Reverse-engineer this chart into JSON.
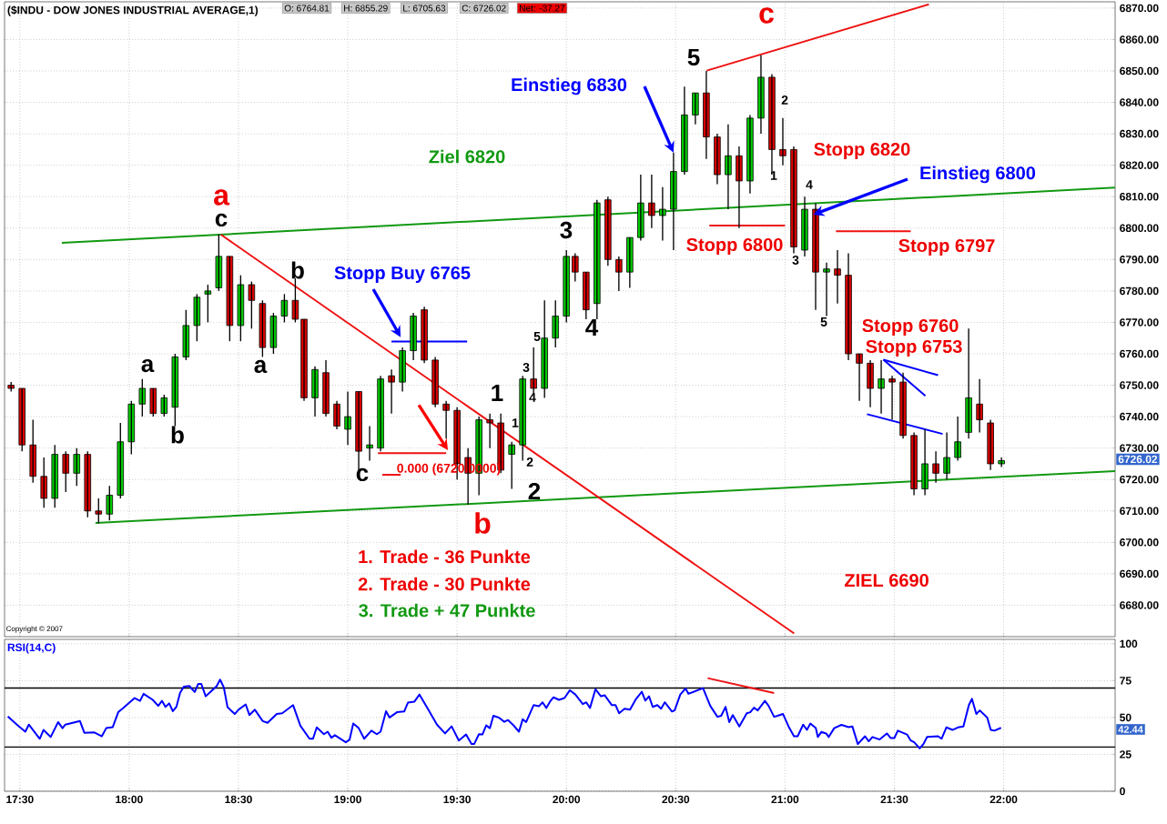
{
  "chart_data": [
    {
      "type": "candlestick",
      "title": "($INDU - DOW JONES INDUSTRIAL AVERAGE,1)",
      "x": [
        17.46,
        17.51,
        17.56,
        17.61,
        17.66,
        17.71,
        17.76,
        17.81,
        17.86,
        17.91,
        17.96,
        18.01,
        18.06,
        18.11,
        18.16,
        18.21,
        18.26,
        18.31,
        18.36,
        18.41,
        18.46,
        18.51,
        18.56,
        18.61,
        18.66,
        18.71,
        18.76,
        18.8,
        18.85,
        18.9,
        18.95,
        19.0,
        19.05,
        19.1,
        19.15,
        19.2,
        19.25,
        19.3,
        19.35,
        19.4,
        19.45,
        19.5,
        19.55,
        19.6,
        19.65,
        19.7,
        19.75,
        19.8,
        19.85,
        19.9,
        19.95,
        20.0,
        20.04,
        20.09,
        20.14,
        20.19,
        20.24,
        20.29,
        20.34,
        20.39,
        20.44,
        20.49,
        20.54,
        20.59,
        20.64,
        20.69,
        20.74,
        20.79,
        20.84,
        20.89,
        20.94,
        20.99,
        21.04,
        21.09,
        21.14,
        21.19,
        21.24,
        21.29,
        21.34,
        21.39,
        21.44,
        21.49,
        21.54,
        21.59,
        21.64,
        21.69,
        21.74,
        21.79,
        21.84,
        21.89,
        21.94,
        21.99
      ],
      "ohlc": [
        [
          6750,
          6751,
          6748,
          6749
        ],
        [
          6749,
          6749,
          6729,
          6731
        ],
        [
          6731,
          6739,
          6719,
          6721
        ],
        [
          6721,
          6727,
          6711,
          6714
        ],
        [
          6714,
          6731,
          6711,
          6728
        ],
        [
          6728,
          6729,
          6716,
          6722
        ],
        [
          6722,
          6730,
          6718,
          6728
        ],
        [
          6728,
          6729,
          6708,
          6710
        ],
        [
          6710,
          6714,
          6706,
          6709
        ],
        [
          6709,
          6718,
          6707,
          6715
        ],
        [
          6715,
          6738,
          6714,
          6732
        ],
        [
          6732,
          6745,
          6728,
          6744
        ],
        [
          6744,
          6752,
          6740,
          6749
        ],
        [
          6749,
          6749,
          6740,
          6741
        ],
        [
          6741,
          6747,
          6740,
          6746
        ],
        [
          6743,
          6760,
          6737,
          6759
        ],
        [
          6759,
          6774,
          6758,
          6769
        ],
        [
          6769,
          6779,
          6764,
          6778
        ],
        [
          6779,
          6782,
          6770,
          6780
        ],
        [
          6781,
          6798,
          6780,
          6791
        ],
        [
          6791,
          6791,
          6764,
          6769
        ],
        [
          6769,
          6785,
          6764,
          6782
        ],
        [
          6782,
          6783,
          6768,
          6777
        ],
        [
          6776,
          6777,
          6759,
          6762
        ],
        [
          6762,
          6773,
          6760,
          6772
        ],
        [
          6772,
          6779,
          6770,
          6777
        ],
        [
          6777,
          6784,
          6770,
          6771
        ],
        [
          6771,
          6771,
          6745,
          6746
        ],
        [
          6746,
          6756,
          6740,
          6755
        ],
        [
          6754,
          6758,
          6740,
          6741
        ],
        [
          6744,
          6745,
          6736,
          6737
        ],
        [
          6736,
          6748,
          6731,
          6740
        ],
        [
          6748,
          6748,
          6721,
          6729
        ],
        [
          6730,
          6737,
          6726,
          6731
        ],
        [
          6730,
          6753,
          6729,
          6752
        ],
        [
          6753,
          6755,
          6741,
          6751
        ],
        [
          6751,
          6762,
          6748,
          6761
        ],
        [
          6761,
          6773,
          6758,
          6772
        ],
        [
          6774,
          6775,
          6757,
          6758
        ],
        [
          6758,
          6759,
          6743,
          6744
        ],
        [
          6744,
          6745,
          6733,
          6742
        ],
        [
          6742,
          6743,
          6720,
          6725
        ],
        [
          6727,
          6730,
          6712,
          6722
        ],
        [
          6722,
          6740,
          6715,
          6739
        ],
        [
          6739,
          6741,
          6730,
          6738
        ],
        [
          6738,
          6741,
          6722,
          6723
        ],
        [
          6728,
          6732,
          6717,
          6731
        ],
        [
          6731,
          6753,
          6726,
          6752
        ],
        [
          6752,
          6762,
          6747,
          6749
        ],
        [
          6749,
          6777,
          6746,
          6765
        ],
        [
          6765,
          6777,
          6762,
          6772
        ],
        [
          6772,
          6793,
          6770,
          6791
        ],
        [
          6791,
          6792,
          6783,
          6786
        ],
        [
          6786,
          6786,
          6771,
          6774
        ],
        [
          6776,
          6809,
          6771,
          6808
        ],
        [
          6809,
          6810,
          6788,
          6790
        ],
        [
          6790,
          6791,
          6780,
          6786
        ],
        [
          6786,
          6797,
          6781,
          6797
        ],
        [
          6797,
          6817,
          6796,
          6808
        ],
        [
          6808,
          6817,
          6800,
          6804
        ],
        [
          6804,
          6813,
          6796,
          6806
        ],
        [
          6806,
          6824,
          6793,
          6818
        ],
        [
          6818,
          6845,
          6817,
          6836
        ],
        [
          6836,
          6843,
          6833,
          6843
        ],
        [
          6843,
          6850,
          6822,
          6829
        ],
        [
          6829,
          6830,
          6814,
          6817
        ],
        [
          6817,
          6833,
          6806,
          6823
        ],
        [
          6823,
          6826,
          6800,
          6815
        ],
        [
          6815,
          6836,
          6811,
          6835
        ],
        [
          6835,
          6855,
          6830,
          6848
        ],
        [
          6848,
          6849,
          6817,
          6825
        ],
        [
          6825,
          6835,
          6820,
          6823
        ],
        [
          6825,
          6826,
          6792,
          6794
        ],
        [
          6793,
          6810,
          6791,
          6806
        ],
        [
          6806,
          6808,
          6774,
          6786
        ],
        [
          6786,
          6789,
          6772,
          6787
        ],
        [
          6787,
          6793,
          6776,
          6785
        ],
        [
          6785,
          6792,
          6758,
          6760
        ],
        [
          6760,
          6760,
          6745,
          6757
        ],
        [
          6757,
          6758,
          6743,
          6749
        ],
        [
          6749,
          6758,
          6741,
          6752
        ],
        [
          6752,
          6753,
          6739,
          6751
        ],
        [
          6751,
          6754,
          6733,
          6734
        ],
        [
          6734,
          6735,
          6715,
          6717
        ],
        [
          6717,
          6736,
          6715,
          6725
        ],
        [
          6725,
          6729,
          6719,
          6722
        ],
        [
          6722,
          6735,
          6720,
          6727
        ],
        [
          6727,
          6740,
          6726,
          6732
        ],
        [
          6735,
          6768,
          6733,
          6746
        ],
        [
          6744,
          6752,
          6735,
          6739
        ],
        [
          6738,
          6739,
          6723,
          6725
        ],
        [
          6725,
          6727,
          6724,
          6726
        ]
      ],
      "series": [
        {
          "type": "line",
          "color": "#119911",
          "x": [
            17.692,
            22.51
          ],
          "values": [
            6795.3,
            6812.9
          ]
        },
        {
          "type": "line",
          "color": "#119911",
          "x": [
            17.846,
            22.51
          ],
          "values": [
            6706.2,
            6722.7
          ]
        },
        {
          "type": "line",
          "color": "#ee1111",
          "x": [
            18.42,
            21.042
          ],
          "values": [
            6797.9,
            6671
          ]
        },
        {
          "type": "line",
          "color": "#ee1111",
          "x": [
            20.642,
            21.658
          ],
          "values": [
            6850.1,
            6871.2
          ]
        },
        {
          "type": "line",
          "color": "#0000ff",
          "x": [
            19.2,
            19.546
          ],
          "values": [
            6763.9,
            6763.9
          ]
        },
        {
          "type": "line",
          "color": "#ee1111",
          "x": [
            19.138,
            19.45
          ],
          "values": [
            6728.4,
            6728.4
          ]
        },
        {
          "type": "line",
          "color": "#ee1111",
          "x": [
            19.158,
            19.242
          ],
          "values": [
            6721.5,
            6721.5
          ]
        },
        {
          "type": "line",
          "color": "#ee1111",
          "x": [
            20.654,
            21.0
          ],
          "values": [
            6800.8,
            6800.8
          ]
        },
        {
          "type": "line",
          "color": "#ee1111",
          "x": [
            21.233,
            21.575
          ],
          "values": [
            6799,
            6799
          ]
        },
        {
          "type": "line",
          "color": "#0000ff",
          "x": [
            21.375,
            21.721
          ],
          "values": [
            6740.8,
            6734.5
          ]
        },
        {
          "type": "line",
          "color": "#0000ff",
          "x": [
            21.45,
            21.7
          ],
          "values": [
            6758.1,
            6753.2
          ]
        },
        {
          "type": "line",
          "color": "#0000ff",
          "x": [
            21.45,
            21.642
          ],
          "values": [
            6758.1,
            6746.6
          ]
        }
      ],
      "xlim": [
        17.43,
        22.51
      ],
      "ylim": [
        6670,
        6872
      ],
      "xticks": [
        {
          "value": 17.5,
          "label": null
        },
        {
          "value": 18,
          "label": null
        },
        {
          "value": 18.5,
          "label": null
        },
        {
          "value": 19,
          "label": null
        },
        {
          "value": 19.5,
          "label": null
        },
        {
          "value": 20,
          "label": null
        },
        {
          "value": 20.5,
          "label": null
        },
        {
          "value": 21,
          "label": null
        },
        {
          "value": 21.5,
          "label": null
        },
        {
          "value": 22,
          "label": null
        }
      ],
      "yticks": [
        {
          "value": 6680,
          "label": "6680.00"
        },
        {
          "value": 6690,
          "label": "6690.00"
        },
        {
          "value": 6700,
          "label": "6700.00"
        },
        {
          "value": 6710,
          "label": "6710.00"
        },
        {
          "value": 6720,
          "label": "6720.00"
        },
        {
          "value": 6730,
          "label": "6730.00"
        },
        {
          "value": 6740,
          "label": "6740.00"
        },
        {
          "value": 6750,
          "label": "6750.00"
        },
        {
          "value": 6760,
          "label": "6760.00"
        },
        {
          "value": 6770,
          "label": "6770.00"
        },
        {
          "value": 6780,
          "label": "6780.00"
        },
        {
          "value": 6790,
          "label": "6790.00"
        },
        {
          "value": 6800,
          "label": "6800.00"
        },
        {
          "value": 6810,
          "label": "6810.00"
        },
        {
          "value": 6820,
          "label": "6820.00"
        },
        {
          "value": 6830,
          "label": "6830.00"
        },
        {
          "value": 6840,
          "label": "6840.00"
        },
        {
          "value": 6850,
          "label": "6850.00"
        },
        {
          "value": 6860,
          "label": "6860.00"
        },
        {
          "value": 6870,
          "label": "6870.00"
        }
      ],
      "tick_labels": "y",
      "grid": true,
      "annotations": [
        "O: 6764.81",
        "H: 6855.29",
        "L: 6705.63",
        "C: 6726.02",
        "Net: -37.27",
        "Copyright © 2007",
        "a",
        "c",
        "b",
        "a",
        "a",
        "b",
        "c",
        "b",
        "1",
        "2",
        "3",
        "4",
        "5",
        "c",
        "5",
        "3",
        "4",
        "1",
        "2",
        "2",
        "1",
        "4",
        "3",
        "5",
        "Ziel 6820",
        {
          "text": "Stopp Buy 6765",
          "x": 19.242,
          "y": 6765.3
        },
        {
          "text": "Einstieg 6830",
          "x": 20.49,
          "y": 6824
        },
        "Stopp 6820",
        {
          "text": "Einstieg 6800",
          "x": 21.129,
          "y": 6804.3
        },
        "Stopp 6800",
        "Stopp 6797",
        "Stopp 6760",
        "Stopp 6753",
        "ZIEL 6690",
        "1. Trade - 36 Punkte",
        "2. Trade - 30 Punkte",
        "3. Trade + 47 Punkte",
        "0.000 (6720.0000)",
        "6726.02"
      ]
    },
    {
      "type": "line",
      "title": "RSI(14,C)",
      "series": [
        {
          "color": "#0000ff",
          "x": [
            17.445,
            17.491,
            17.525,
            17.541,
            17.591,
            17.608,
            17.641,
            17.675,
            17.695,
            17.708,
            17.775,
            17.795,
            17.841,
            17.875,
            17.895,
            17.925,
            17.95,
            17.975,
            18.025,
            18.05,
            18.066,
            18.108,
            18.133,
            18.15,
            18.166,
            18.183,
            18.2,
            18.216,
            18.233,
            18.25,
            18.275,
            18.3,
            18.316,
            18.33,
            18.35,
            18.4,
            18.416,
            18.433,
            18.45,
            18.483,
            18.5,
            18.533,
            18.55,
            18.575,
            18.611,
            18.633,
            18.675,
            18.7,
            18.75,
            18.783,
            18.825,
            18.841,
            18.858,
            18.891,
            18.908,
            18.925,
            18.941,
            18.991,
            19.008,
            19.025,
            19.05,
            19.075,
            19.108,
            19.133,
            19.15,
            19.175,
            19.191,
            19.225,
            19.258,
            19.275,
            19.305,
            19.328,
            19.366,
            19.408,
            19.445,
            19.475,
            19.508,
            19.541,
            19.566,
            19.578,
            19.6,
            19.616,
            19.633,
            19.65,
            19.666,
            19.691,
            19.716,
            19.733,
            19.758,
            19.783,
            19.8,
            19.816,
            19.85,
            19.875,
            19.891,
            19.908,
            19.925,
            19.941,
            19.966,
            19.991,
            20.016,
            20.041,
            20.075,
            20.091,
            20.108,
            20.133,
            20.158,
            20.175,
            20.208,
            20.225,
            20.241,
            20.266,
            20.291,
            20.316,
            20.345,
            20.361,
            20.378,
            20.395,
            20.416,
            20.433,
            20.45,
            20.483,
            20.495,
            20.521,
            20.545,
            20.558,
            20.625,
            20.658,
            20.691,
            20.708,
            20.728,
            20.745,
            20.761,
            20.791,
            20.825,
            20.841,
            20.858,
            20.875,
            20.908,
            20.925,
            20.95,
            20.966,
            20.991,
            21.016,
            21.041,
            21.058,
            21.083,
            21.1,
            21.116,
            21.141,
            21.15,
            21.166,
            21.188,
            21.2,
            21.225,
            21.258,
            21.291,
            21.308,
            21.333,
            21.366,
            21.383,
            21.4,
            21.433,
            21.466,
            21.483,
            21.5,
            21.516,
            21.558,
            21.575,
            21.591,
            21.616,
            21.633,
            21.65,
            21.7,
            21.716,
            21.738,
            21.766,
            21.791,
            21.816,
            21.841,
            21.855,
            21.875,
            21.891,
            21.925,
            21.941,
            21.958,
            21.988
          ],
          "values": [
            50.7,
            44.5,
            40.4,
            45.2,
            35.6,
            41.6,
            36.8,
            46.9,
            42.8,
            45.2,
            47.6,
            39.7,
            39.9,
            37.3,
            42.8,
            43.5,
            53.6,
            56.7,
            63.2,
            61.3,
            66.1,
            62.0,
            57.9,
            61.3,
            57.2,
            59.6,
            54.3,
            57.2,
            66.8,
            70.9,
            71.4,
            67.3,
            72.8,
            72.8,
            64.4,
            71.2,
            75.7,
            70.4,
            57.0,
            52.4,
            55.3,
            58.9,
            51.7,
            55.3,
            47.6,
            46.4,
            52.4,
            52.9,
            58.4,
            44.5,
            35.6,
            35.6,
            43.3,
            38.7,
            40.4,
            36.3,
            38.0,
            33.2,
            34.9,
            45.9,
            42.8,
            35.6,
            41.1,
            38.7,
            40.4,
            54.3,
            50.0,
            53.6,
            54.1,
            60.1,
            60.8,
            65.6,
            56.0,
            45.2,
            39.2,
            44.0,
            34.4,
            38.5,
            32.0,
            32.0,
            38.7,
            38.5,
            44.7,
            42.8,
            51.2,
            50.0,
            47.1,
            48.3,
            44.7,
            40.4,
            48.8,
            46.9,
            58.4,
            57.7,
            60.3,
            56.5,
            60.8,
            63.7,
            62.0,
            63.2,
            68.5,
            65.6,
            59.1,
            60.3,
            56.5,
            69.2,
            64.4,
            65.1,
            58.4,
            58.4,
            52.9,
            56.0,
            55.3,
            62.0,
            67.5,
            61.5,
            64.4,
            57.2,
            58.4,
            56.0,
            60.3,
            54.1,
            54.8,
            65.6,
            69.7,
            66.1,
            69.9,
            57.9,
            50.5,
            51.2,
            57.2,
            46.9,
            51.7,
            44.0,
            52.9,
            53.6,
            56.7,
            54.8,
            61.3,
            57.9,
            50.5,
            51.2,
            52.4,
            44.0,
            37.3,
            37.3,
            45.2,
            41.6,
            45.9,
            42.8,
            36.8,
            40.2,
            39.2,
            36.8,
            42.8,
            45.0,
            43.5,
            44.0,
            32.0,
            37.3,
            33.9,
            36.8,
            35.1,
            39.2,
            36.1,
            36.1,
            41.1,
            38.5,
            34.4,
            33.2,
            29.1,
            32.0,
            36.8,
            37.3,
            35.6,
            43.3,
            41.6,
            43.3,
            44.0,
            58.4,
            62.7,
            52.4,
            54.8,
            50.0,
            41.6,
            41.1,
            43.0
          ]
        },
        {
          "color": "#ee1111",
          "x": [
            20.646,
            20.95
          ],
          "values": [
            76.7,
            66.6
          ]
        }
      ],
      "xlim": [
        17.43,
        22.51
      ],
      "ylim": [
        0,
        103
      ],
      "xticks": [
        {
          "value": 17.5,
          "label": "17:30"
        },
        {
          "value": 18,
          "label": "18:00"
        },
        {
          "value": 18.5,
          "label": "18:30"
        },
        {
          "value": 19,
          "label": "19:00"
        },
        {
          "value": 19.5,
          "label": "19:30"
        },
        {
          "value": 20,
          "label": "20:00"
        },
        {
          "value": 20.5,
          "label": "20:30"
        },
        {
          "value": 21,
          "label": "21:00"
        },
        {
          "value": 21.5,
          "label": "21:30"
        },
        {
          "value": 22,
          "label": "22:00"
        }
      ],
      "yticks": [
        0,
        25,
        50,
        75,
        100
      ],
      "grid": true,
      "ref_lines": [
        {
          "axis": "y",
          "value": 70,
          "color": "#000000"
        },
        {
          "axis": "y",
          "value": 30,
          "color": "#000000"
        }
      ],
      "annotations": [
        "42.44"
      ]
    }
  ]
}
